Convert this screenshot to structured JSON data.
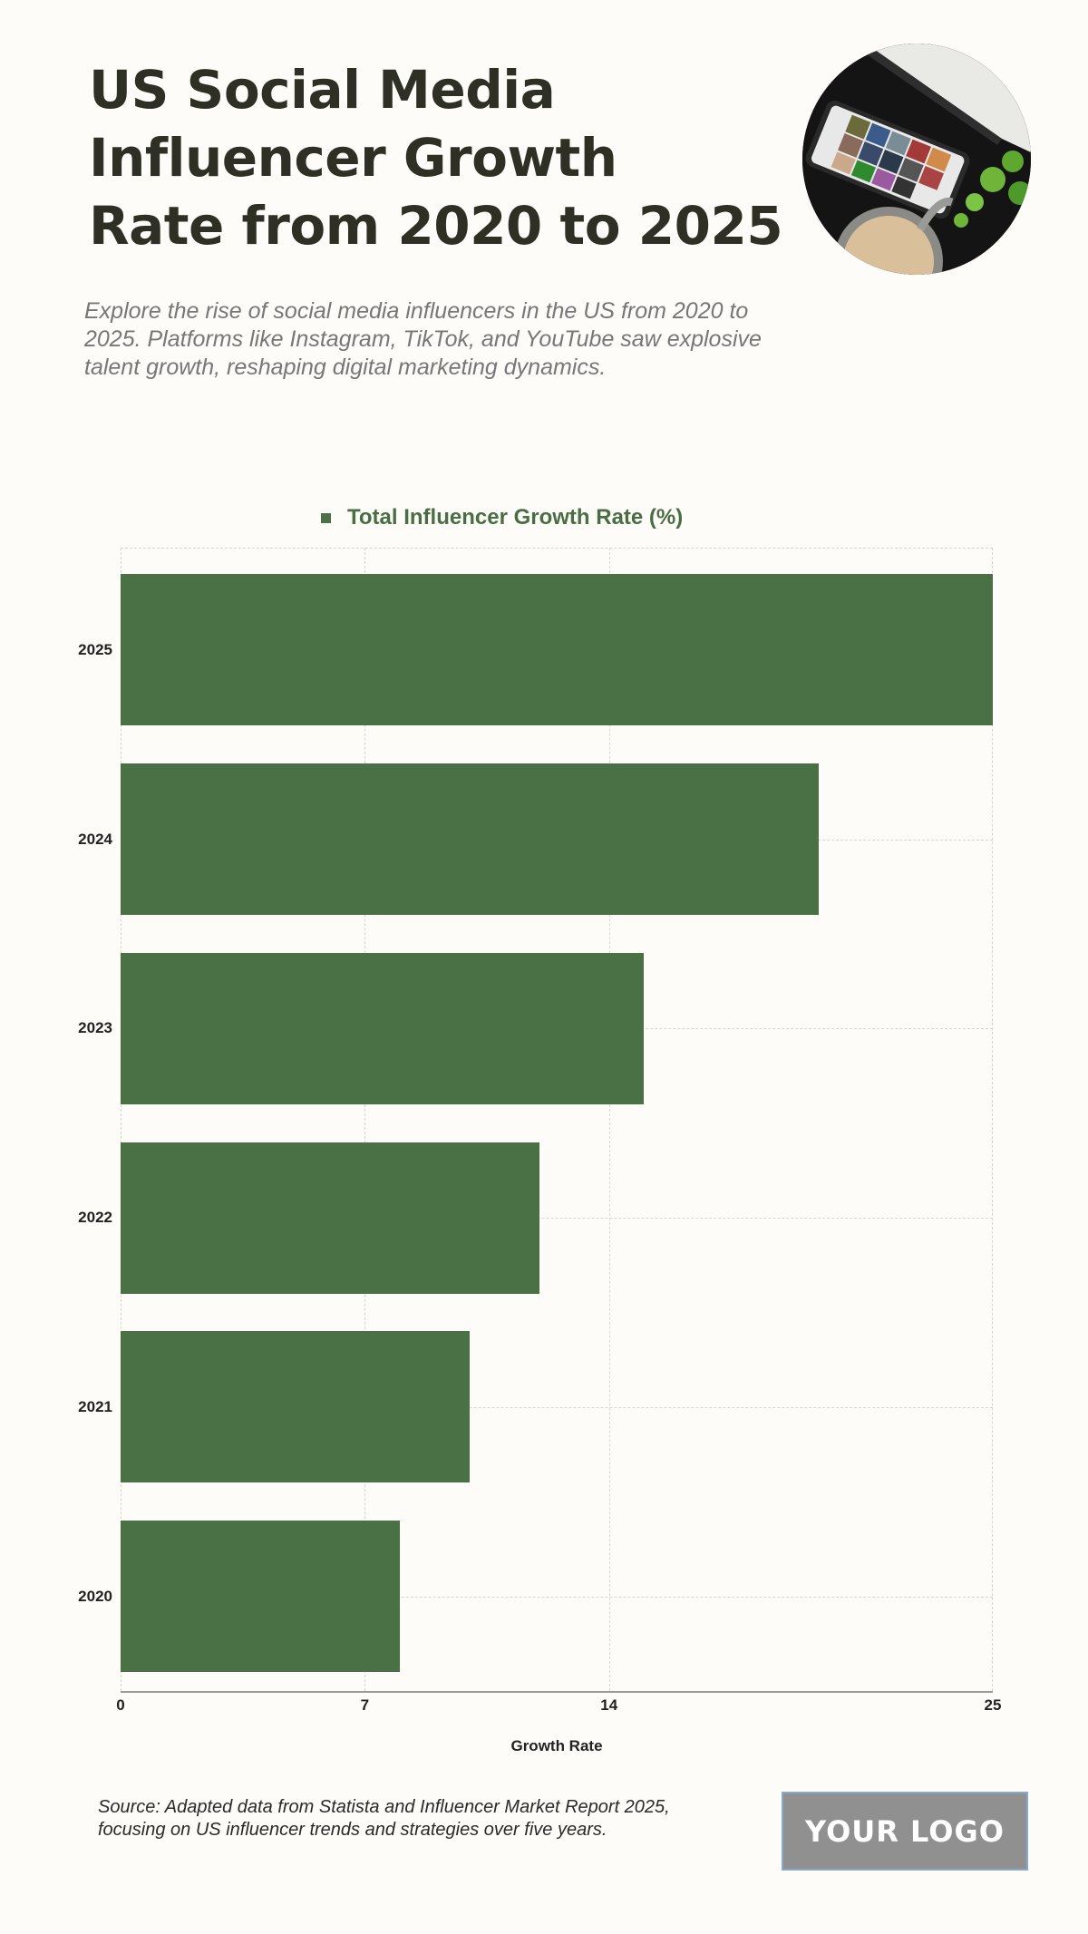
{
  "header": {
    "title": "US Social Media Influencer Growth Rate from 2020 to 2025",
    "title_lines": [
      "US Social Media",
      "Influencer Growth",
      "Rate from 2020 to 2025"
    ],
    "subtitle": "Explore the rise of social media influencers in the US from 2020 to 2025. Platforms like Instagram, TikTok, and YouTube saw explosive talent growth, reshaping digital marketing dynamics.",
    "hero_image": "phone-on-desk-with-coffee-photo"
  },
  "colors": {
    "background": "#fdfcf8",
    "title": "#2f3025",
    "bar": "#4a7045",
    "legend_text": "#4a6e44",
    "subtitle": "#777777",
    "gridline": "#d6d6d6",
    "logo_bg": "#909090"
  },
  "chart_data": {
    "type": "bar",
    "orientation": "horizontal",
    "title": "",
    "categories": [
      "2025",
      "2024",
      "2023",
      "2022",
      "2021",
      "2020"
    ],
    "series": [
      {
        "name": "Total Influencer Growth Rate (%)",
        "values": [
          25,
          20,
          15,
          12,
          10,
          8
        ]
      }
    ],
    "xlabel": "Growth Rate",
    "ylabel": "",
    "xlim": [
      0,
      25
    ],
    "xticks": [
      0,
      7,
      14,
      25
    ],
    "grid": true,
    "legend_position": "top"
  },
  "footer": {
    "source": "Source: Adapted data from Statista and Influencer Market Report 2025, focusing on US influencer trends and strategies over five years.",
    "logo_text": "YOUR LOGO"
  }
}
